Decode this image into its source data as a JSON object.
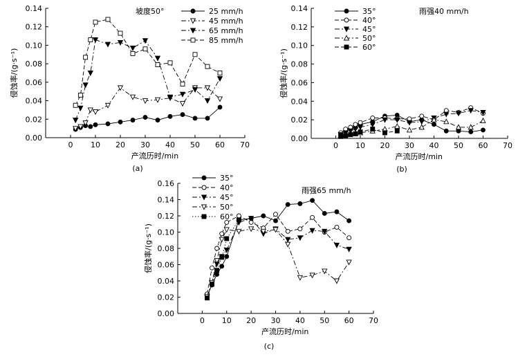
{
  "chart_data": [
    {
      "panel": "(a)",
      "type": "line",
      "annotation": "坡度50°",
      "xlabel": "产流历时/min",
      "ylabel": "侵蚀率/(g·s⁻¹)",
      "xlim": [
        -10,
        70
      ],
      "ylim": [
        0,
        0.14
      ],
      "xticks": [
        0,
        10,
        20,
        30,
        40,
        50,
        60,
        70
      ],
      "yticks": [
        0.0,
        0.02,
        0.04,
        0.06,
        0.08,
        0.1,
        0.12,
        0.14
      ],
      "legend": "top-right",
      "series": [
        {
          "name": "25 mm/h",
          "marker": "circle-filled",
          "line": "solid",
          "x": [
            2,
            4,
            6,
            8,
            10,
            15,
            20,
            25,
            30,
            35,
            40,
            45,
            50,
            55,
            60
          ],
          "y": [
            0.009,
            0.011,
            0.013,
            0.012,
            0.014,
            0.015,
            0.017,
            0.019,
            0.022,
            0.019,
            0.023,
            0.025,
            0.021,
            0.021,
            0.033
          ]
        },
        {
          "name": "45 mm/h",
          "marker": "triangle-down-open",
          "line": "dashdot",
          "x": [
            2,
            4,
            6,
            8,
            10,
            15,
            20,
            25,
            30,
            35,
            40,
            45,
            50,
            55,
            60
          ],
          "y": [
            0.01,
            0.012,
            0.016,
            0.03,
            0.028,
            0.035,
            0.054,
            0.044,
            0.04,
            0.041,
            0.043,
            0.037,
            0.054,
            0.054,
            0.042
          ]
        },
        {
          "name": "65 mm/h",
          "marker": "triangle-down-filled",
          "line": "dashdot",
          "x": [
            2,
            4,
            6,
            8,
            10,
            15,
            20,
            25,
            30,
            35,
            40,
            45,
            50,
            55,
            60
          ],
          "y": [
            0.019,
            0.032,
            0.057,
            0.07,
            0.106,
            0.101,
            0.103,
            0.097,
            0.105,
            0.086,
            0.044,
            0.047,
            0.052,
            0.04,
            0.064
          ]
        },
        {
          "name": "85 mm/h",
          "marker": "square-open",
          "line": "dash",
          "x": [
            2,
            4,
            6,
            8,
            10,
            15,
            20,
            25,
            30,
            35,
            40,
            45,
            50,
            55,
            60
          ],
          "y": [
            0.035,
            0.046,
            0.087,
            0.106,
            0.125,
            0.128,
            0.113,
            0.091,
            0.096,
            0.079,
            0.081,
            0.058,
            0.09,
            0.077,
            0.07
          ]
        }
      ]
    },
    {
      "panel": "(b)",
      "type": "line",
      "annotation": "雨强40 mm/h",
      "xlabel": "产流历时/min",
      "ylabel": "侵蚀率/(g·s⁻¹)",
      "xlim": [
        -10,
        70
      ],
      "ylim": [
        0,
        0.14
      ],
      "xticks": [
        0,
        10,
        20,
        30,
        40,
        50,
        60,
        70
      ],
      "yticks": [
        0.0,
        0.02,
        0.04,
        0.06,
        0.08,
        0.1,
        0.12,
        0.14
      ],
      "legend": "top-left",
      "series": [
        {
          "name": "35°",
          "marker": "circle-filled",
          "line": "solid",
          "x": [
            2,
            4,
            6,
            8,
            10,
            15,
            20,
            25,
            30,
            35,
            40,
            45,
            50,
            55,
            60
          ],
          "y": [
            0.005,
            0.008,
            0.01,
            0.012,
            0.015,
            0.018,
            0.024,
            0.025,
            0.018,
            0.02,
            0.015,
            0.008,
            0.008,
            0.007,
            0.009
          ]
        },
        {
          "name": "40°",
          "marker": "circle-open",
          "line": "dash",
          "x": [
            2,
            4,
            6,
            8,
            10,
            15,
            20,
            25,
            30,
            35,
            40,
            45,
            50,
            55,
            60
          ],
          "y": [
            0.006,
            0.01,
            0.012,
            0.015,
            0.017,
            0.022,
            0.022,
            0.021,
            0.021,
            0.024,
            0.02,
            0.03,
            0.028,
            0.033,
            0.027
          ]
        },
        {
          "name": "45°",
          "marker": "triangle-down-filled",
          "line": "dashdot",
          "x": [
            2,
            4,
            6,
            8,
            10,
            15,
            20,
            25,
            30,
            35,
            40,
            45,
            50,
            55,
            60
          ],
          "y": [
            0.004,
            0.006,
            0.008,
            0.01,
            0.012,
            0.015,
            0.02,
            0.02,
            0.017,
            0.018,
            0.022,
            0.026,
            0.027,
            0.03,
            0.028
          ]
        },
        {
          "name": "50°",
          "marker": "triangle-up-open",
          "line": "dashdot",
          "x": [
            2,
            4,
            6,
            8,
            10,
            15,
            20,
            25,
            30,
            35,
            40,
            45,
            50,
            55,
            60
          ],
          "y": [
            0.003,
            0.004,
            0.005,
            0.005,
            0.006,
            0.008,
            0.01,
            0.013,
            0.009,
            0.012,
            0.02,
            0.018,
            0.012,
            0.012,
            0.019
          ]
        },
        {
          "name": "60°",
          "marker": "square-filled",
          "line": "dash",
          "x": [
            2,
            4,
            6,
            8,
            10,
            15,
            20,
            25
          ],
          "y": [
            0.002,
            0.003,
            0.004,
            0.005,
            0.007,
            0.01,
            0.006,
            0.008
          ]
        }
      ]
    },
    {
      "panel": "(c)",
      "type": "line",
      "annotation": "雨强65 mm/h",
      "xlabel": "产流历时/min",
      "ylabel": "侵蚀率/(g·s⁻¹)",
      "xlim": [
        -10,
        70
      ],
      "ylim": [
        0,
        0.16
      ],
      "xticks": [
        0,
        10,
        20,
        30,
        40,
        50,
        60,
        70
      ],
      "yticks": [
        0.0,
        0.02,
        0.04,
        0.06,
        0.08,
        0.1,
        0.12,
        0.14,
        0.16
      ],
      "legend": "top-left",
      "series": [
        {
          "name": "35°",
          "marker": "circle-filled",
          "line": "solid",
          "x": [
            2,
            4,
            6,
            8,
            10,
            15,
            20,
            25,
            30,
            35,
            40,
            45,
            50,
            55,
            60
          ],
          "y": [
            0.022,
            0.035,
            0.048,
            0.058,
            0.07,
            0.115,
            0.117,
            0.12,
            0.114,
            0.134,
            0.135,
            0.139,
            0.123,
            0.125,
            0.114
          ]
        },
        {
          "name": "40°",
          "marker": "circle-open",
          "line": "dash",
          "x": [
            2,
            4,
            6,
            8,
            10,
            15,
            20,
            25,
            30,
            35,
            40,
            45,
            50,
            55,
            60
          ],
          "y": [
            0.024,
            0.056,
            0.08,
            0.098,
            0.112,
            0.12,
            0.112,
            0.105,
            0.122,
            0.101,
            0.104,
            0.118,
            0.1,
            0.106,
            0.093
          ]
        },
        {
          "name": "45°",
          "marker": "triangle-down-filled",
          "line": "dashdot",
          "x": [
            2,
            4,
            6,
            8,
            10,
            15,
            20,
            25,
            30,
            35,
            40,
            45,
            50,
            55,
            60
          ],
          "y": [
            0.02,
            0.037,
            0.061,
            0.07,
            0.078,
            0.112,
            0.117,
            0.098,
            0.104,
            0.091,
            0.093,
            0.102,
            0.101,
            0.084,
            0.079
          ]
        },
        {
          "name": "50°",
          "marker": "triangle-down-open",
          "line": "dashdot",
          "x": [
            2,
            4,
            6,
            8,
            10,
            15,
            20,
            25,
            30,
            35,
            40,
            45,
            50,
            55,
            60
          ],
          "y": [
            0.021,
            0.038,
            0.065,
            0.091,
            0.103,
            0.101,
            0.104,
            0.101,
            0.103,
            0.085,
            0.044,
            0.047,
            0.052,
            0.04,
            0.063
          ]
        },
        {
          "name": "60°",
          "marker": "square-filled",
          "line": "dot",
          "x": [
            2,
            4,
            6,
            8,
            10,
            15
          ],
          "y": [
            0.019,
            0.036,
            0.053,
            0.069,
            0.092,
            0.115
          ]
        }
      ]
    }
  ],
  "panel_labels": [
    "(a)",
    "(b)",
    "(c)"
  ]
}
